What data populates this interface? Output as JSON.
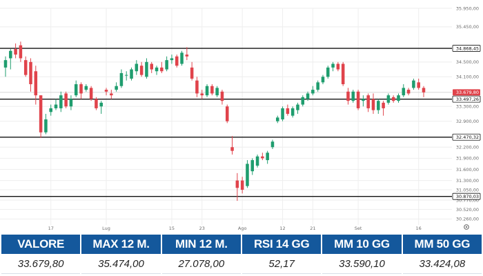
{
  "chart_data": {
    "type": "candlestick",
    "ylim": [
      30100,
      35950
    ],
    "y_ticks": [
      "35.950,00",
      "35.450,00",
      "34.500,00",
      "34.100,00",
      "33.300,00",
      "32.900,00",
      "32.200,00",
      "31.900,00",
      "31.600,00",
      "31.300,00",
      "31.050,00",
      "30.770,00",
      "30.520,00",
      "30.260,00"
    ],
    "x_ticks": [
      {
        "label": "17",
        "index": 9
      },
      {
        "label": "Lug",
        "index": 20
      },
      {
        "label": "15",
        "index": 33
      },
      {
        "label": "23",
        "index": 39
      },
      {
        "label": "Ago",
        "index": 47
      },
      {
        "label": "12",
        "index": 55
      },
      {
        "label": "21",
        "index": 61
      },
      {
        "label": "Set",
        "index": 70
      },
      {
        "label": "16",
        "index": 82
      }
    ],
    "levels": [
      {
        "value": 34868.45,
        "label": "34.868,45"
      },
      {
        "value": 33497.26,
        "label": "33.497,26"
      },
      {
        "value": 32470.32,
        "label": "32.470,32"
      },
      {
        "value": 30870.03,
        "label": "30.870,03"
      }
    ],
    "current": {
      "value": 33679.8,
      "label": "33.679,80"
    },
    "candles": [
      {
        "o": 34350,
        "h": 34650,
        "l": 34100,
        "c": 34550
      },
      {
        "o": 34600,
        "h": 34850,
        "l": 34300,
        "c": 34800
      },
      {
        "o": 34850,
        "h": 35000,
        "l": 34600,
        "c": 34700
      },
      {
        "o": 34950,
        "h": 35050,
        "l": 34500,
        "c": 34600
      },
      {
        "o": 34550,
        "h": 34650,
        "l": 34100,
        "c": 34150
      },
      {
        "o": 34500,
        "h": 34600,
        "l": 33700,
        "c": 33900
      },
      {
        "o": 34250,
        "h": 34400,
        "l": 33350,
        "c": 33600
      },
      {
        "o": 33600,
        "h": 33600,
        "l": 32450,
        "c": 32600
      },
      {
        "o": 32600,
        "h": 33100,
        "l": 32550,
        "c": 32950
      },
      {
        "o": 33150,
        "h": 33350,
        "l": 33050,
        "c": 33250
      },
      {
        "o": 33250,
        "h": 33500,
        "l": 33200,
        "c": 33350
      },
      {
        "o": 33250,
        "h": 33700,
        "l": 33150,
        "c": 33600
      },
      {
        "o": 33650,
        "h": 33700,
        "l": 33250,
        "c": 33300
      },
      {
        "o": 33300,
        "h": 33600,
        "l": 33200,
        "c": 33500
      },
      {
        "o": 33600,
        "h": 34000,
        "l": 33550,
        "c": 33900
      },
      {
        "o": 33900,
        "h": 33950,
        "l": 33500,
        "c": 33650
      },
      {
        "o": 33750,
        "h": 33900,
        "l": 33700,
        "c": 33850
      },
      {
        "o": 33800,
        "h": 33850,
        "l": 33450,
        "c": 33500
      },
      {
        "o": 33500,
        "h": 33550,
        "l": 33200,
        "c": 33250
      },
      {
        "o": 33300,
        "h": 33450,
        "l": 33100,
        "c": 33400
      },
      {
        "o": 33750,
        "h": 33800,
        "l": 33600,
        "c": 33700
      },
      {
        "o": 33650,
        "h": 33750,
        "l": 33500,
        "c": 33600
      },
      {
        "o": 33750,
        "h": 33950,
        "l": 33700,
        "c": 33850
      },
      {
        "o": 33850,
        "h": 34300,
        "l": 33800,
        "c": 34200
      },
      {
        "o": 34150,
        "h": 34250,
        "l": 34000,
        "c": 34150
      },
      {
        "o": 34050,
        "h": 34350,
        "l": 34000,
        "c": 34300
      },
      {
        "o": 34250,
        "h": 34550,
        "l": 34150,
        "c": 34450
      },
      {
        "o": 34400,
        "h": 34500,
        "l": 34100,
        "c": 34150
      },
      {
        "o": 34100,
        "h": 34600,
        "l": 34050,
        "c": 34500
      },
      {
        "o": 34450,
        "h": 34500,
        "l": 34200,
        "c": 34300
      },
      {
        "o": 34250,
        "h": 34400,
        "l": 34150,
        "c": 34350
      },
      {
        "o": 34350,
        "h": 34500,
        "l": 34200,
        "c": 34250
      },
      {
        "o": 34300,
        "h": 34650,
        "l": 34250,
        "c": 34550
      },
      {
        "o": 34550,
        "h": 34700,
        "l": 34450,
        "c": 34600
      },
      {
        "o": 34650,
        "h": 34700,
        "l": 34350,
        "c": 34400
      },
      {
        "o": 34450,
        "h": 34800,
        "l": 34400,
        "c": 34750
      },
      {
        "o": 34700,
        "h": 34900,
        "l": 34550,
        "c": 34650
      },
      {
        "o": 34350,
        "h": 34500,
        "l": 34000,
        "c": 34050
      },
      {
        "o": 34000,
        "h": 34100,
        "l": 33550,
        "c": 33650
      },
      {
        "o": 33650,
        "h": 33750,
        "l": 33500,
        "c": 33600
      },
      {
        "o": 33600,
        "h": 33900,
        "l": 33550,
        "c": 33850
      },
      {
        "o": 33850,
        "h": 33900,
        "l": 33600,
        "c": 33650
      },
      {
        "o": 33600,
        "h": 33850,
        "l": 33550,
        "c": 33800
      },
      {
        "o": 33700,
        "h": 33750,
        "l": 33350,
        "c": 33450
      },
      {
        "o": 33300,
        "h": 33350,
        "l": 32850,
        "c": 32900
      },
      {
        "o": 32200,
        "h": 32500,
        "l": 32000,
        "c": 32100
      },
      {
        "o": 31300,
        "h": 31500,
        "l": 30750,
        "c": 31100
      },
      {
        "o": 31300,
        "h": 31400,
        "l": 30950,
        "c": 31050
      },
      {
        "o": 31150,
        "h": 31850,
        "l": 31100,
        "c": 31750
      },
      {
        "o": 31550,
        "h": 31900,
        "l": 31450,
        "c": 31850
      },
      {
        "o": 31700,
        "h": 32000,
        "l": 31650,
        "c": 31950
      },
      {
        "o": 31950,
        "h": 32050,
        "l": 31850,
        "c": 31900
      },
      {
        "o": 31850,
        "h": 32100,
        "l": 31750,
        "c": 32050
      },
      {
        "o": 32200,
        "h": 32400,
        "l": 32150,
        "c": 32350
      },
      {
        "o": 32900,
        "h": 33050,
        "l": 32850,
        "c": 33000
      },
      {
        "o": 32950,
        "h": 33300,
        "l": 32900,
        "c": 33250
      },
      {
        "o": 33250,
        "h": 33350,
        "l": 33050,
        "c": 33100
      },
      {
        "o": 33050,
        "h": 33300,
        "l": 33000,
        "c": 33250
      },
      {
        "o": 33200,
        "h": 33400,
        "l": 33100,
        "c": 33350
      },
      {
        "o": 33350,
        "h": 33600,
        "l": 33300,
        "c": 33550
      },
      {
        "o": 33500,
        "h": 33700,
        "l": 33450,
        "c": 33650
      },
      {
        "o": 33650,
        "h": 33850,
        "l": 33600,
        "c": 33750
      },
      {
        "o": 33750,
        "h": 34000,
        "l": 33700,
        "c": 33950
      },
      {
        "o": 33950,
        "h": 34150,
        "l": 33900,
        "c": 34100
      },
      {
        "o": 34100,
        "h": 34400,
        "l": 34050,
        "c": 34350
      },
      {
        "o": 34350,
        "h": 34500,
        "l": 34250,
        "c": 34450
      },
      {
        "o": 34450,
        "h": 34500,
        "l": 34250,
        "c": 34300
      },
      {
        "o": 34450,
        "h": 34500,
        "l": 33850,
        "c": 33900
      },
      {
        "o": 33700,
        "h": 33800,
        "l": 33350,
        "c": 33450
      },
      {
        "o": 33450,
        "h": 33750,
        "l": 33400,
        "c": 33700
      },
      {
        "o": 33700,
        "h": 33750,
        "l": 33200,
        "c": 33250
      },
      {
        "o": 33450,
        "h": 33600,
        "l": 33300,
        "c": 33500
      },
      {
        "o": 33600,
        "h": 33650,
        "l": 33150,
        "c": 33250
      },
      {
        "o": 33500,
        "h": 33650,
        "l": 33100,
        "c": 33200
      },
      {
        "o": 33200,
        "h": 33500,
        "l": 33100,
        "c": 33450
      },
      {
        "o": 33400,
        "h": 33450,
        "l": 33050,
        "c": 33250
      },
      {
        "o": 33400,
        "h": 33650,
        "l": 33350,
        "c": 33600
      },
      {
        "o": 33550,
        "h": 33600,
        "l": 33400,
        "c": 33450
      },
      {
        "o": 33450,
        "h": 33650,
        "l": 33400,
        "c": 33600
      },
      {
        "o": 33600,
        "h": 33900,
        "l": 33550,
        "c": 33800
      },
      {
        "o": 33750,
        "h": 33800,
        "l": 33600,
        "c": 33650
      },
      {
        "o": 33800,
        "h": 34050,
        "l": 33750,
        "c": 34000
      },
      {
        "o": 33950,
        "h": 34050,
        "l": 33750,
        "c": 33800
      },
      {
        "o": 33800,
        "h": 33850,
        "l": 33550,
        "c": 33680
      }
    ]
  },
  "colors": {
    "up": "#1f9d6e",
    "down": "#e0434b",
    "level_line": "#111111",
    "grid": "#eeeeee",
    "current_badge": "#e0434b",
    "header_bg": "#14589c"
  },
  "stats": [
    {
      "label": "VALORE",
      "value": "33.679,80"
    },
    {
      "label": "MAX 12 M.",
      "value": "35.474,00"
    },
    {
      "label": "MIN 12 M.",
      "value": "27.078,00"
    },
    {
      "label": "RSI 14 GG",
      "value": "52,17"
    },
    {
      "label": "MM 10 GG",
      "value": "33.590,10"
    },
    {
      "label": "MM 50 GG",
      "value": "33.424,08"
    }
  ],
  "settings_icon": "gear-icon"
}
